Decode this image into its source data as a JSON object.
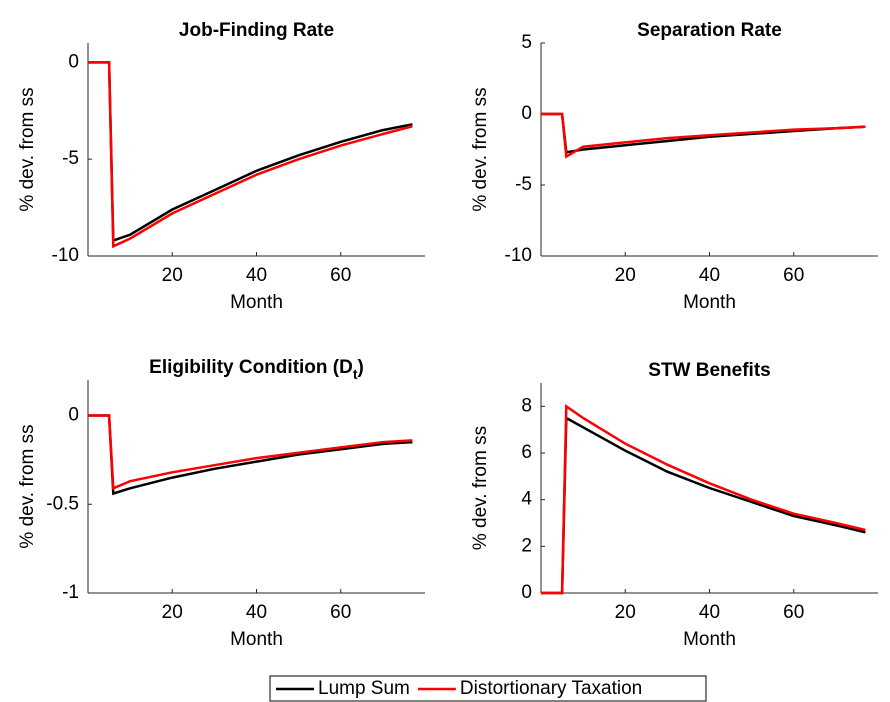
{
  "chart_data": [
    {
      "type": "line",
      "title": "Job-Finding Rate",
      "xlabel": "Month",
      "ylabel": "% dev. from ss",
      "x": [
        0,
        5,
        6,
        10,
        20,
        30,
        40,
        50,
        60,
        70,
        77
      ],
      "xlim": [
        0,
        80
      ],
      "xticks": [
        20,
        40,
        60
      ],
      "ylim": [
        -10,
        1
      ],
      "yticks": [
        -10,
        -5,
        0
      ],
      "series": [
        {
          "name": "Lump Sum",
          "color": "#000000",
          "values": [
            0,
            0,
            -9.2,
            -8.9,
            -7.6,
            -6.6,
            -5.6,
            -4.8,
            -4.1,
            -3.5,
            -3.2
          ]
        },
        {
          "name": "Distortionary Taxation",
          "color": "#ff0000",
          "values": [
            0,
            0,
            -9.5,
            -9.1,
            -7.8,
            -6.8,
            -5.8,
            -5.0,
            -4.3,
            -3.7,
            -3.3
          ]
        }
      ]
    },
    {
      "type": "line",
      "title": "Separation Rate",
      "xlabel": "Month",
      "ylabel": "% dev. from ss",
      "x": [
        0,
        5,
        6,
        10,
        20,
        30,
        40,
        50,
        60,
        70,
        77
      ],
      "xlim": [
        0,
        80
      ],
      "xticks": [
        20,
        40,
        60
      ],
      "ylim": [
        -10,
        5
      ],
      "yticks": [
        -10,
        -5,
        0,
        5
      ],
      "series": [
        {
          "color": "#000000",
          "values": [
            0,
            0,
            -2.7,
            -2.5,
            -2.2,
            -1.9,
            -1.6,
            -1.4,
            -1.2,
            -1.0,
            -0.9
          ]
        },
        {
          "color": "#ff0000",
          "values": [
            0,
            0,
            -3.0,
            -2.3,
            -2.0,
            -1.7,
            -1.5,
            -1.3,
            -1.1,
            -1.0,
            -0.9
          ]
        }
      ]
    },
    {
      "type": "line",
      "title": "Eligibility Condition (D",
      "title_subscript": "t",
      "title_suffix": ")",
      "xlabel": "Month",
      "ylabel": "% dev. from ss",
      "x": [
        0,
        5,
        6,
        10,
        20,
        30,
        40,
        50,
        60,
        70,
        77
      ],
      "xlim": [
        0,
        80
      ],
      "xticks": [
        20,
        40,
        60
      ],
      "ylim": [
        -1,
        0.2
      ],
      "yticks": [
        -1,
        -0.5,
        0
      ],
      "series": [
        {
          "color": "#000000",
          "values": [
            0,
            0,
            -0.44,
            -0.41,
            -0.35,
            -0.3,
            -0.26,
            -0.22,
            -0.19,
            -0.16,
            -0.15
          ]
        },
        {
          "color": "#ff0000",
          "values": [
            0,
            0,
            -0.41,
            -0.37,
            -0.32,
            -0.28,
            -0.24,
            -0.21,
            -0.18,
            -0.15,
            -0.14
          ]
        }
      ]
    },
    {
      "type": "line",
      "title": "STW Benefits",
      "xlabel": "Month",
      "ylabel": "% dev. from ss",
      "x": [
        0,
        5,
        6,
        10,
        20,
        30,
        40,
        50,
        60,
        70,
        77
      ],
      "xlim": [
        0,
        80
      ],
      "xticks": [
        20,
        40,
        60
      ],
      "ylim": [
        0,
        9
      ],
      "yticks": [
        0,
        2,
        4,
        6,
        8
      ],
      "series": [
        {
          "color": "#000000",
          "values": [
            0,
            0,
            7.5,
            7.1,
            6.1,
            5.2,
            4.5,
            3.9,
            3.3,
            2.9,
            2.6
          ]
        },
        {
          "color": "#ff0000",
          "values": [
            0,
            0,
            8.0,
            7.5,
            6.4,
            5.5,
            4.7,
            4.0,
            3.4,
            3.0,
            2.7
          ]
        }
      ]
    }
  ]
}
